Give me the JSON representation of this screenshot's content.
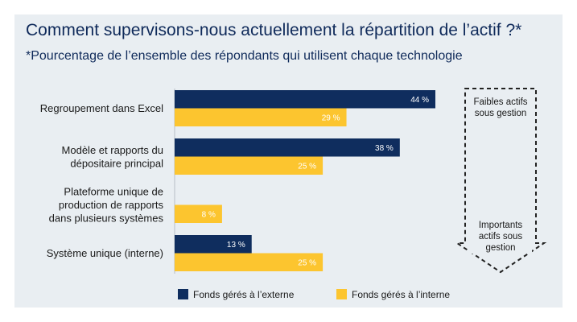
{
  "header": {
    "title": "Comment supervisons-nous actuellement la répartition de l’actif ?*",
    "subtitle": "*Pourcentage de l’ensemble des répondants qui utilisent chaque technologie"
  },
  "colors": {
    "external": "#0f2d5e",
    "internal": "#fcc52f",
    "panel": "#e9eef2",
    "title": "#0f2a5a"
  },
  "chart_data": {
    "type": "bar",
    "orientation": "horizontal",
    "title": "Comment supervisons-nous actuellement la répartition de l’actif ?*",
    "subtitle": "*Pourcentage de l’ensemble des répondants qui utilisent chaque technologie",
    "categories": [
      [
        "Regroupement dans Excel"
      ],
      [
        "Modèle et rapports du",
        "dépositaire principal"
      ],
      [
        "Plateforme unique de",
        "production de rapports",
        "dans plusieurs systèmes"
      ],
      [
        "Système unique (interne)"
      ]
    ],
    "series": [
      {
        "name": "Fonds gérés à l’externe",
        "values": [
          44,
          38,
          0,
          13
        ],
        "labels": [
          "44 %",
          "38 %",
          "",
          "13 %"
        ],
        "color": "#0f2d5e",
        "label_color": "#ffffff"
      },
      {
        "name": "Fonds gérés à l’interne",
        "values": [
          29,
          25,
          8,
          25
        ],
        "labels": [
          "29 %",
          "25 %",
          "8 %",
          "25 %"
        ],
        "color": "#fcc52f",
        "label_color": "#ffffff"
      }
    ],
    "xlim": [
      0,
      50
    ],
    "grid": false,
    "legend_position": "bottom",
    "annotations": {
      "top": [
        "Faibles actifs",
        "sous gestion"
      ],
      "bottom": [
        "Importants",
        "actifs sous",
        "gestion"
      ]
    }
  }
}
